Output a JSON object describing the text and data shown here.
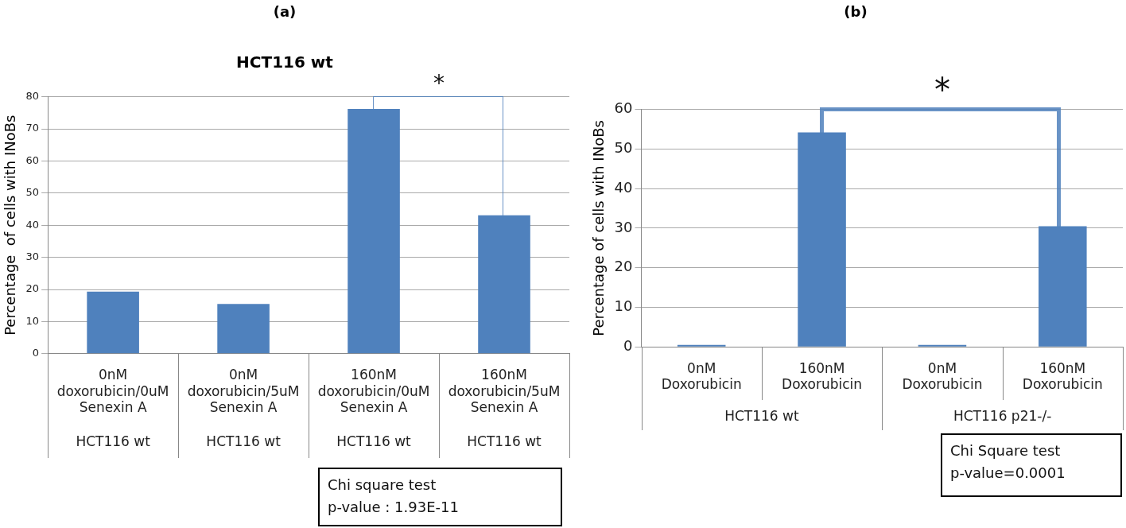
{
  "chart_data": [
    {
      "type": "bar",
      "title": "(a)",
      "subtitle": "HCT116 wt",
      "ylabel": "Percentage  of cells with INoBs",
      "categories": [
        "0nM doxorubicin/0uM Senexin A",
        "0nM doxorubicin/5uM Senexin A",
        "160nM doxorubicin/0uM Senexin A",
        "160nM doxorubicin/5uM Senexin A"
      ],
      "values": [
        19.3,
        15.5,
        76.2,
        43.1
      ],
      "color": "#4f81bd",
      "ylim": [
        0,
        80
      ],
      "yticks": [
        0,
        10,
        20,
        30,
        40,
        50,
        60,
        70,
        80
      ],
      "grid": "y",
      "legend": false,
      "annotations": [
        "HCT116 wt",
        "HCT116 wt",
        "HCT116 wt",
        "HCT116 wt",
        "*",
        "Chi square test\np-value : 1.93E-11"
      ]
    },
    {
      "type": "bar",
      "title": "(b)",
      "ylabel": "Percentage of cells with INoBs",
      "categories": [
        "0nM Doxorubicin",
        "160nM Doxorubicin",
        "0nM Doxorubicin",
        "160nM Doxorubicin"
      ],
      "values": [
        0.5,
        54.2,
        0.5,
        30.5
      ],
      "color": "#4f81bd",
      "ylim": [
        0,
        60
      ],
      "yticks": [
        0,
        10,
        20,
        30,
        40,
        50,
        60
      ],
      "grid": "y",
      "legend": false,
      "annotations": [
        "HCT116 wt",
        "HCT116 p21-/-",
        "*",
        "Chi Square test\np-value=0.0001"
      ]
    }
  ]
}
